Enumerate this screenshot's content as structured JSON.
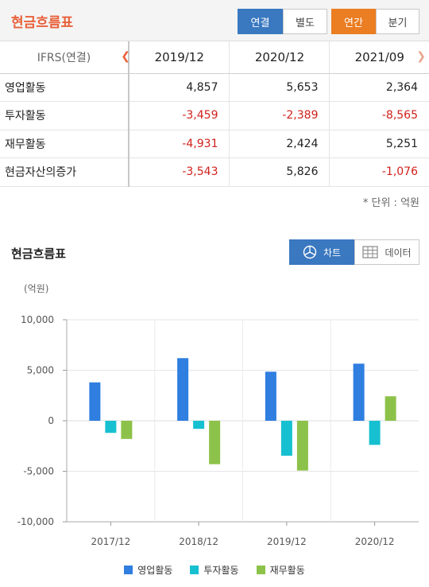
{
  "header": {
    "title": "현금흐름표",
    "scope_options": [
      "연결",
      "별도"
    ],
    "scope_selected": "연결",
    "period_options": [
      "연간",
      "분기"
    ],
    "period_selected": "연간"
  },
  "table": {
    "corner_label": "IFRS(연결)",
    "columns": [
      "2019/12",
      "2020/12",
      "2021/09"
    ],
    "rows": [
      {
        "label": "영업활동",
        "values": [
          "4,857",
          "5,653",
          "2,364"
        ]
      },
      {
        "label": "투자활동",
        "values": [
          "-3,459",
          "-2,389",
          "-8,565"
        ]
      },
      {
        "label": "재무활동",
        "values": [
          "-4,931",
          "2,424",
          "5,251"
        ]
      },
      {
        "label": "현금자산의증가",
        "values": [
          "-3,543",
          "5,826",
          "-1,076"
        ]
      }
    ],
    "unit_note": "* 단위 : 억원"
  },
  "chart_section": {
    "title": "현금흐름표",
    "view_chart_label": "차트",
    "view_data_label": "데이터",
    "colors": {
      "accent_blue": "#3a78c0",
      "accent_orange": "#eb7d22",
      "negative_red": "#d0201b"
    }
  },
  "chart_data": {
    "type": "bar",
    "ylabel": "(억원)",
    "categories": [
      "2017/12",
      "2018/12",
      "2019/12",
      "2020/12"
    ],
    "series": [
      {
        "name": "영업활동",
        "color": "#2f7ee0",
        "values": [
          3800,
          6200,
          4857,
          5653
        ]
      },
      {
        "name": "투자활동",
        "color": "#17c0d0",
        "values": [
          -1200,
          -800,
          -3459,
          -2389
        ]
      },
      {
        "name": "재무활동",
        "color": "#8dc24a",
        "values": [
          -1800,
          -4300,
          -4931,
          2424
        ]
      }
    ],
    "ylim": [
      -10000,
      10000
    ],
    "yticks": [
      10000,
      5000,
      0,
      -5000,
      -10000
    ],
    "ytick_labels": [
      "10,000",
      "5,000",
      "0",
      "-5,000",
      "-10,000"
    ],
    "grid": true,
    "legend": "bottom"
  }
}
